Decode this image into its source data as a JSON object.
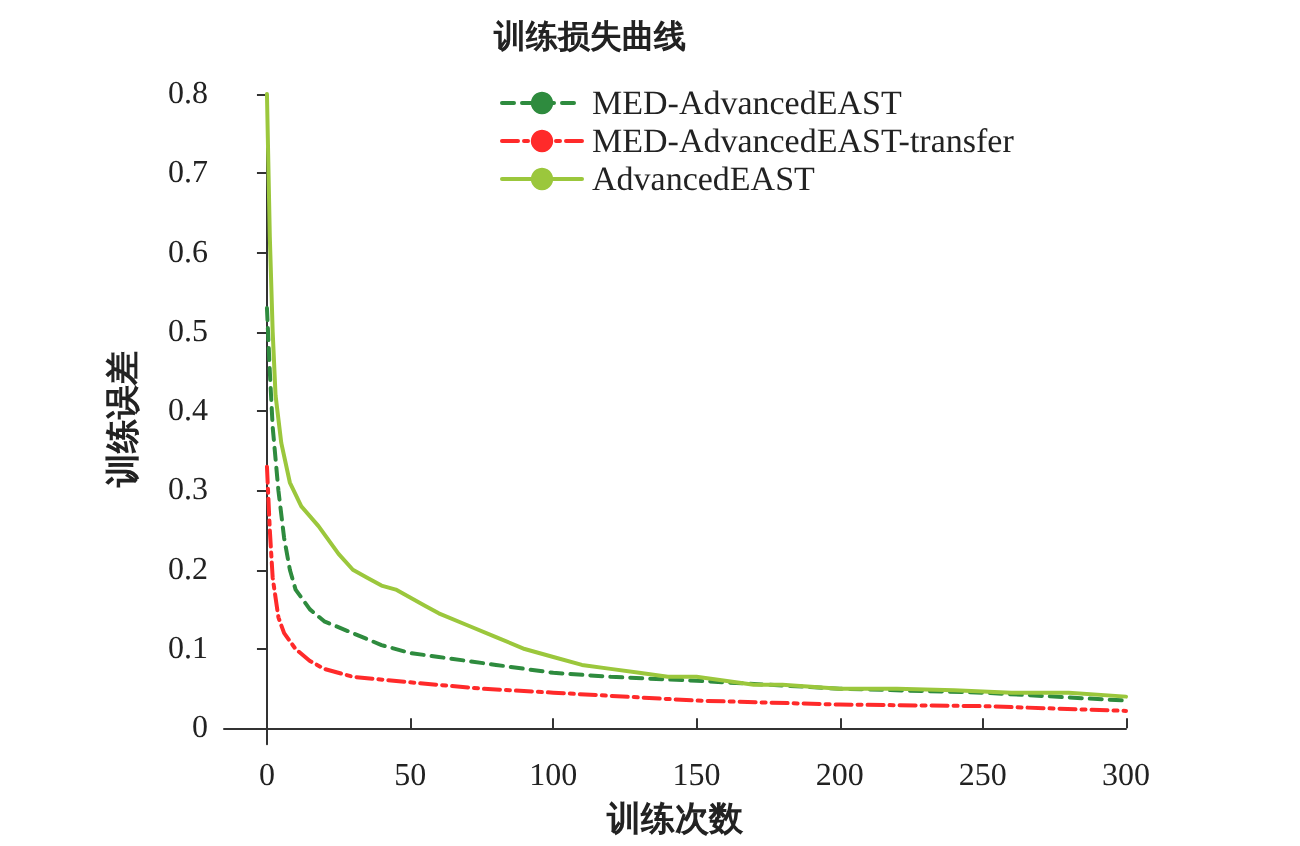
{
  "chart_data": {
    "type": "line",
    "title": "训练损失曲线",
    "xlabel": "训练次数",
    "ylabel": "训练误差",
    "xlim": [
      -15,
      300
    ],
    "xticks": [
      0,
      50,
      100,
      150,
      200,
      250,
      300
    ],
    "ylim": [
      -0.02,
      0.8
    ],
    "yticks": [
      0,
      0.1,
      0.2,
      0.3,
      0.4,
      0.5,
      0.6,
      0.7,
      0.8
    ],
    "grid": false,
    "legend": "top right",
    "marker": "none",
    "series": [
      {
        "name": "MED-AdvancedEAST",
        "color": "#2e8b3e",
        "line_style": "dashed",
        "x": [
          0,
          1,
          2,
          4,
          6,
          8,
          10,
          15,
          20,
          30,
          40,
          50,
          60,
          80,
          100,
          120,
          150,
          200,
          250,
          300
        ],
        "values": [
          0.53,
          0.45,
          0.38,
          0.3,
          0.24,
          0.2,
          0.175,
          0.15,
          0.135,
          0.12,
          0.105,
          0.095,
          0.09,
          0.08,
          0.07,
          0.065,
          0.06,
          0.05,
          0.045,
          0.035
        ]
      },
      {
        "name": "MED-AdvancedEAST-transfer",
        "color": "#ff2a2a",
        "line_style": "dashdot",
        "x": [
          0,
          1,
          2,
          4,
          6,
          10,
          15,
          20,
          30,
          50,
          75,
          100,
          150,
          200,
          250,
          300
        ],
        "values": [
          0.33,
          0.25,
          0.19,
          0.14,
          0.12,
          0.1,
          0.085,
          0.075,
          0.065,
          0.058,
          0.05,
          0.045,
          0.035,
          0.03,
          0.028,
          0.022
        ]
      },
      {
        "name": "AdvancedEAST",
        "color": "#9bc73c",
        "line_style": "solid",
        "x": [
          0,
          1,
          2,
          3,
          5,
          8,
          12,
          18,
          25,
          30,
          35,
          40,
          45,
          50,
          55,
          60,
          70,
          80,
          90,
          100,
          110,
          120,
          130,
          140,
          150,
          160,
          170,
          180,
          200,
          220,
          240,
          260,
          280,
          300
        ],
        "values": [
          0.8,
          0.62,
          0.5,
          0.42,
          0.36,
          0.31,
          0.28,
          0.255,
          0.22,
          0.2,
          0.19,
          0.18,
          0.175,
          0.165,
          0.155,
          0.145,
          0.13,
          0.115,
          0.1,
          0.09,
          0.08,
          0.075,
          0.07,
          0.065,
          0.065,
          0.06,
          0.055,
          0.055,
          0.05,
          0.05,
          0.048,
          0.045,
          0.045,
          0.04
        ]
      }
    ]
  }
}
